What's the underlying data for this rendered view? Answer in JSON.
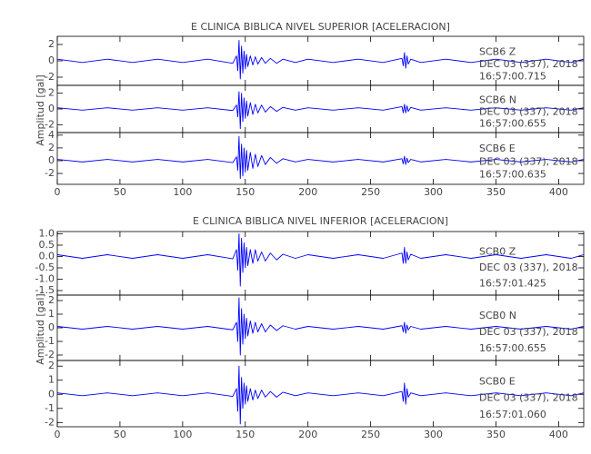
{
  "chart_data": [
    {
      "type": "line",
      "title": "E CLINICA BIBLICA NIVEL SUPERIOR [ACELERACION]",
      "y_label": "Amplitud [gal]",
      "xlim": [
        0,
        420
      ],
      "xticks": [
        0,
        50,
        100,
        150,
        200,
        250,
        300,
        350,
        400
      ],
      "x": [
        0,
        20,
        40,
        60,
        80,
        100,
        120,
        140,
        143,
        144,
        145,
        146,
        147,
        148,
        149,
        150,
        151,
        152,
        154,
        156,
        158,
        160,
        163,
        166,
        170,
        175,
        180,
        190,
        200,
        220,
        240,
        260,
        275,
        276,
        277,
        278,
        279,
        280,
        282,
        290,
        310,
        330,
        350,
        370,
        390,
        410,
        420
      ],
      "panels": [
        {
          "ylim": [
            -3,
            3
          ],
          "yticks": [
            -2,
            0,
            2
          ],
          "color": "#0000ff",
          "annotation": [
            "SCB6   Z",
            "DEC 03 (337), 2018",
            "16:57:00.715"
          ],
          "values": [
            0.2,
            -0.2,
            0.2,
            -0.2,
            0.2,
            -0.2,
            0.2,
            -0.3,
            0.6,
            -1.2,
            2.5,
            -2.2,
            1.8,
            -1.5,
            1.2,
            -1.0,
            0.8,
            -0.7,
            0.6,
            -0.5,
            0.5,
            -0.4,
            0.4,
            -0.3,
            0.3,
            -0.3,
            0.2,
            -0.2,
            0.2,
            -0.2,
            0.2,
            -0.2,
            0.3,
            -0.6,
            1.0,
            -0.9,
            0.6,
            -0.4,
            0.2,
            -0.2,
            0.2,
            -0.2,
            0.2,
            -0.2,
            0.2,
            -0.2,
            0.2
          ]
        },
        {
          "ylim": [
            -3,
            3
          ],
          "yticks": [
            -2,
            0,
            2
          ],
          "color": "#0000ff",
          "annotation": [
            "SCB6   N",
            "DEC 03 (337), 2018",
            "16:57:00.655"
          ],
          "values": [
            0.15,
            -0.15,
            0.15,
            -0.15,
            0.15,
            -0.15,
            0.15,
            -0.2,
            0.5,
            -1.0,
            2.2,
            -2.5,
            2.0,
            -1.6,
            1.4,
            -1.2,
            1.0,
            -0.9,
            0.8,
            -0.7,
            0.6,
            -0.5,
            0.5,
            -0.4,
            0.3,
            -0.3,
            0.2,
            -0.15,
            0.15,
            -0.15,
            0.15,
            -0.15,
            0.3,
            -0.5,
            0.6,
            -0.5,
            0.4,
            -0.3,
            0.2,
            -0.15,
            0.15,
            -0.15,
            0.15,
            -0.15,
            0.15,
            -0.15,
            0.15
          ]
        },
        {
          "ylim": [
            -3.7,
            4.4
          ],
          "yticks": [
            -2,
            0,
            2,
            4
          ],
          "color": "#0000ff",
          "annotation": [
            "SCB6   E",
            "DEC 03 (337), 2018",
            "16:57:00.635"
          ],
          "values": [
            0.2,
            -0.2,
            0.2,
            -0.2,
            0.2,
            -0.2,
            0.2,
            -0.3,
            0.6,
            -1.5,
            3.8,
            -2.8,
            2.6,
            -2.4,
            2.0,
            -1.8,
            1.6,
            -1.5,
            1.3,
            -1.2,
            1.0,
            -0.9,
            0.8,
            -0.6,
            0.5,
            -0.4,
            0.3,
            -0.2,
            0.2,
            -0.2,
            0.2,
            -0.2,
            0.3,
            -0.5,
            0.7,
            -0.6,
            0.4,
            -0.3,
            0.2,
            -0.2,
            0.2,
            -0.2,
            0.2,
            -0.2,
            0.2,
            -0.2,
            0.2
          ]
        }
      ]
    },
    {
      "type": "line",
      "title": "E CLINICA BIBLICA NIVEL INFERIOR [ACELERACION]",
      "y_label": "Amplitud [gal]",
      "xlim": [
        0,
        420
      ],
      "xticks": [
        0,
        50,
        100,
        150,
        200,
        250,
        300,
        350,
        400
      ],
      "x": [
        0,
        20,
        40,
        60,
        80,
        100,
        120,
        140,
        143,
        144,
        145,
        146,
        147,
        148,
        149,
        150,
        151,
        152,
        154,
        156,
        158,
        160,
        163,
        166,
        170,
        175,
        180,
        190,
        200,
        220,
        240,
        260,
        275,
        276,
        277,
        278,
        279,
        280,
        282,
        290,
        310,
        330,
        350,
        370,
        390,
        410,
        420
      ],
      "panels": [
        {
          "ylim": [
            -1.7,
            1.1
          ],
          "yticks": [
            {
              "value": -1.5,
              "label": "-1.5"
            },
            {
              "value": -1,
              "label": "-1.0"
            },
            -0.5,
            {
              "value": 0,
              "label": "0.0"
            },
            0.5,
            {
              "value": 1,
              "label": "1.0"
            }
          ],
          "color": "#0000ff",
          "annotation": [
            "SCB0   Z",
            "DEC 03 (337), 2018",
            "16:57:01.425"
          ],
          "values": [
            0.08,
            -0.08,
            0.08,
            -0.08,
            0.08,
            -0.08,
            0.08,
            -0.1,
            0.3,
            -0.6,
            1.0,
            -1.3,
            0.8,
            -0.7,
            0.6,
            -0.5,
            0.4,
            -0.4,
            0.3,
            -0.3,
            0.3,
            -0.2,
            0.2,
            -0.2,
            0.15,
            -0.15,
            0.1,
            -0.08,
            0.08,
            -0.08,
            0.08,
            -0.08,
            0.15,
            -0.3,
            0.4,
            -0.3,
            0.2,
            -0.15,
            0.1,
            -0.08,
            0.08,
            -0.08,
            0.08,
            -0.08,
            0.08,
            -0.08,
            0.08
          ]
        },
        {
          "ylim": [
            -2.4,
            2.4
          ],
          "yticks": [
            -2,
            -1,
            0,
            1,
            2
          ],
          "color": "#0000ff",
          "annotation": [
            "SCB0   N",
            "DEC 03 (337), 2018",
            "16:57:00.655"
          ],
          "values": [
            0.1,
            -0.1,
            0.1,
            -0.1,
            0.1,
            -0.1,
            0.1,
            -0.15,
            0.4,
            -1.0,
            2.2,
            -2.0,
            1.4,
            -1.2,
            1.0,
            -0.8,
            0.7,
            -0.6,
            0.5,
            -0.4,
            0.4,
            -0.3,
            0.3,
            -0.3,
            0.2,
            -0.2,
            0.15,
            -0.1,
            0.1,
            -0.1,
            0.1,
            -0.1,
            0.15,
            -0.3,
            0.4,
            -0.4,
            0.2,
            -0.15,
            0.1,
            -0.1,
            0.1,
            -0.1,
            0.1,
            -0.1,
            0.1,
            -0.1,
            0.1
          ]
        },
        {
          "ylim": [
            -2.3,
            2.4
          ],
          "yticks": [
            -2,
            -1,
            0,
            1,
            2
          ],
          "color": "#0000ff",
          "annotation": [
            "SCB0   E",
            "DEC 03 (337), 2018",
            "16:57:01.060"
          ],
          "values": [
            0.1,
            -0.1,
            0.1,
            -0.1,
            0.1,
            -0.1,
            0.1,
            -0.15,
            0.4,
            -1.2,
            2.0,
            -2.1,
            1.2,
            -1.0,
            0.8,
            -0.7,
            0.6,
            -0.5,
            0.4,
            -0.4,
            0.3,
            -0.3,
            0.3,
            -0.2,
            0.2,
            -0.2,
            0.15,
            -0.1,
            0.1,
            -0.1,
            0.1,
            -0.1,
            0.2,
            -0.5,
            0.8,
            -0.7,
            0.4,
            -0.2,
            0.1,
            -0.1,
            0.1,
            -0.1,
            0.1,
            -0.1,
            0.1,
            -0.1,
            0.1
          ]
        }
      ]
    }
  ]
}
